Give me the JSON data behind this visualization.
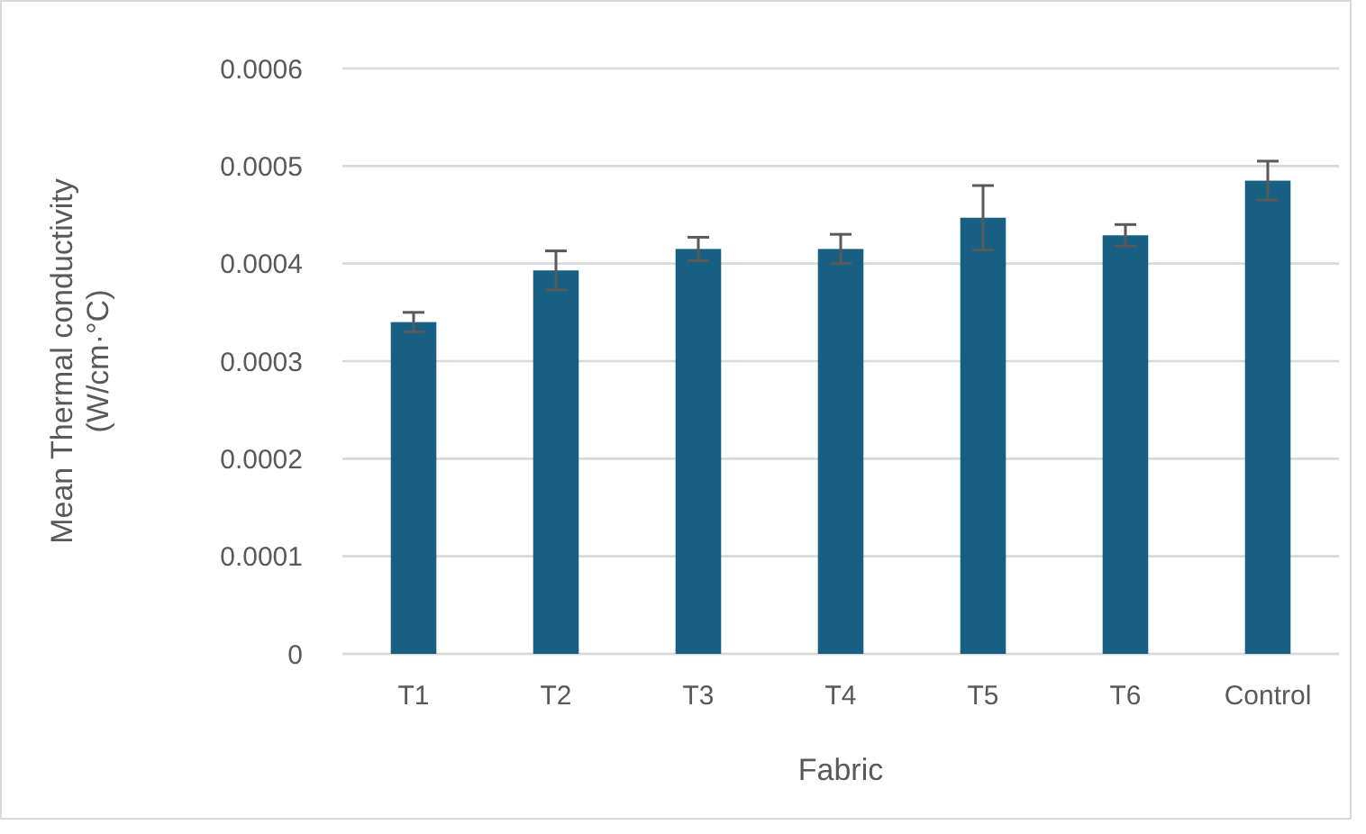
{
  "chart_data": {
    "type": "bar",
    "xlabel": "Fabric",
    "ylabel": "Mean Thermal conductivity (W/cm·°C)",
    "categories": [
      "T1",
      "T2",
      "T3",
      "T4",
      "T5",
      "T6",
      "Control"
    ],
    "values": [
      0.00034,
      0.000393,
      0.000415,
      0.000415,
      0.000447,
      0.000429,
      0.000485
    ],
    "errors": [
      1e-05,
      2e-05,
      1.2e-05,
      1.5e-05,
      3.3e-05,
      1.1e-05,
      2e-05
    ],
    "color": "#176083",
    "ylim": [
      0,
      0.0006
    ],
    "yticks": [
      0,
      0.0001,
      0.0002,
      0.0003,
      0.0004,
      0.0005,
      0.0006
    ],
    "grid": "y"
  }
}
